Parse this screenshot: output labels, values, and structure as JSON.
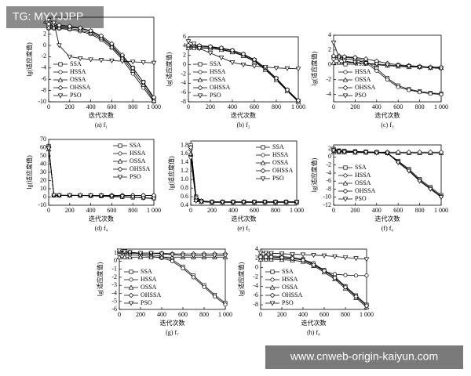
{
  "watermarks": {
    "top": "TG: MYYJJPP",
    "bottom": "www.cnweb-origin-kaiyun.com"
  },
  "chart_data": [
    {
      "type": "line",
      "title": "(a) f₁",
      "xlabel": "迭代次数",
      "ylabel": "lg(适应度值)",
      "legend": "lower left",
      "x": [
        0,
        50,
        100,
        200,
        300,
        400,
        500,
        600,
        700,
        800,
        900,
        1000
      ],
      "xlim": [
        0,
        1000
      ],
      "xticks": [
        0,
        200,
        400,
        600,
        800,
        {
          "value": 1000,
          "label": "1 000"
        }
      ],
      "ylim": [
        -10,
        5
      ],
      "yticks": [
        -10,
        -8,
        -6,
        -4,
        -2,
        0,
        2,
        4
      ],
      "series": [
        {
          "name": "SSA",
          "color": "#000",
          "marker": "square",
          "values": [
            3.5,
            3.5,
            3.4,
            3.2,
            3.0,
            2.5,
            1.5,
            0,
            -2,
            -4,
            -6.5,
            -9.5
          ]
        },
        {
          "name": "HSSA",
          "color": "#000",
          "marker": "circle",
          "values": [
            3,
            3,
            3,
            2.8,
            2.5,
            2,
            1,
            -0.5,
            -2.5,
            -5,
            -7.5,
            -10
          ]
        },
        {
          "name": "OSSA",
          "color": "#000",
          "marker": "triangle",
          "values": [
            3.2,
            3.2,
            3.1,
            3,
            2.7,
            2.2,
            1.3,
            -0.2,
            -2.2,
            -4.5,
            -7,
            -9.8
          ]
        },
        {
          "name": "OHSSA",
          "color": "#000",
          "marker": "diamond",
          "values": [
            3.8,
            3.7,
            3.6,
            3.4,
            3.1,
            2.6,
            1.7,
            0.3,
            -1.7,
            -4,
            -6.5,
            -9.2
          ]
        },
        {
          "name": "PSO",
          "color": "#000",
          "marker": "down",
          "values": [
            4.5,
            4,
            0,
            -2,
            -2.3,
            -2.5,
            -2.6,
            -2.7,
            -2.8,
            -2.9,
            -3,
            -3.1
          ]
        }
      ]
    },
    {
      "type": "line",
      "title": "(b) f₂",
      "xlabel": "迭代次数",
      "ylabel": "lg(适应度值)",
      "legend": "lower left",
      "x": [
        0,
        50,
        100,
        200,
        300,
        400,
        500,
        600,
        700,
        800,
        900,
        1000
      ],
      "xlim": [
        0,
        1000
      ],
      "xticks": [
        0,
        200,
        400,
        600,
        800,
        {
          "value": 1000,
          "label": "1 000"
        }
      ],
      "ylim": [
        -8,
        6
      ],
      "yticks": [
        -8,
        -6,
        -4,
        -2,
        0,
        2,
        4,
        6
      ],
      "series": [
        {
          "name": "SSA",
          "color": "#000",
          "marker": "square",
          "values": [
            4,
            4,
            4,
            3.8,
            3.5,
            3,
            2.2,
            1,
            -0.8,
            -3,
            -5.5,
            -7.8
          ]
        },
        {
          "name": "HSSA",
          "color": "#000",
          "marker": "circle",
          "values": [
            3.8,
            3.8,
            3.7,
            3.6,
            3.3,
            2.8,
            2,
            0.8,
            -1,
            -3.2,
            -5.6,
            -7.9
          ]
        },
        {
          "name": "OSSA",
          "color": "#000",
          "marker": "triangle",
          "values": [
            3.6,
            3.6,
            3.6,
            3.5,
            3.2,
            2.7,
            1.9,
            0.7,
            -1.1,
            -3.3,
            -5.7,
            -8
          ]
        },
        {
          "name": "OHSSA",
          "color": "#000",
          "marker": "diamond",
          "values": [
            4.2,
            4.2,
            4.1,
            3.9,
            3.6,
            3.1,
            2.3,
            1.1,
            -0.7,
            -2.9,
            -5.4,
            -7.7
          ]
        },
        {
          "name": "PSO",
          "color": "#000",
          "marker": "down",
          "values": [
            5,
            4.5,
            3.5,
            2.5,
            1.5,
            0.5,
            0,
            -0.3,
            -0.5,
            -0.7,
            -0.8,
            -0.9
          ]
        }
      ]
    },
    {
      "type": "line",
      "title": "(c) f₃",
      "xlabel": "迭代次数",
      "ylabel": "lg(适应度值)",
      "legend": "lower left",
      "x": [
        0,
        50,
        100,
        200,
        300,
        400,
        500,
        600,
        700,
        800,
        900,
        1000
      ],
      "xlim": [
        0,
        1000
      ],
      "xticks": [
        0,
        200,
        400,
        600,
        800,
        {
          "value": 1000,
          "label": "1 000"
        }
      ],
      "ylim": [
        -5,
        4
      ],
      "yticks": [
        -4,
        -2,
        0,
        2,
        4
      ],
      "series": [
        {
          "name": "SSA",
          "color": "#000",
          "marker": "square",
          "values": [
            1,
            1,
            1,
            0.9,
            0.5,
            -0.5,
            -1.8,
            -2.8,
            -3.3,
            -3.6,
            -3.8,
            -3.9
          ]
        },
        {
          "name": "HSSA",
          "color": "#000",
          "marker": "circle",
          "values": [
            0.8,
            0.8,
            0.8,
            0.7,
            0.3,
            -0.8,
            -2,
            -3,
            -3.4,
            -3.7,
            -3.9,
            -4
          ]
        },
        {
          "name": "OSSA",
          "color": "#000",
          "marker": "triangle",
          "values": [
            0.3,
            0.3,
            0.3,
            0.3,
            0.2,
            0,
            -0.1,
            -0.2,
            -0.3,
            -0.3,
            -0.4,
            -0.4
          ]
        },
        {
          "name": "OHSSA",
          "color": "#000",
          "marker": "diamond",
          "values": [
            1.2,
            1.2,
            1.1,
            1,
            0.8,
            0.5,
            0.2,
            0,
            -0.1,
            -0.2,
            -0.3,
            -0.3
          ]
        },
        {
          "name": "PSO",
          "color": "#000",
          "marker": "down",
          "values": [
            3,
            1,
            0.5,
            0.3,
            0.2,
            0.1,
            0,
            -0.1,
            -0.2,
            -0.3,
            -0.4,
            -0.5
          ]
        }
      ]
    },
    {
      "type": "line",
      "title": "(d) f₄",
      "xlabel": "迭代次数",
      "ylabel": "lg(适应度值)",
      "legend": "upper right",
      "x": [
        0,
        50,
        100,
        200,
        300,
        400,
        500,
        600,
        700,
        800,
        900,
        1000
      ],
      "xlim": [
        0,
        1000
      ],
      "xticks": [
        0,
        200,
        400,
        600,
        800,
        {
          "value": 1000,
          "label": "1 000"
        }
      ],
      "ylim": [
        -10,
        70
      ],
      "yticks": [
        -10,
        0,
        10,
        20,
        30,
        40,
        50,
        60,
        70
      ],
      "series": [
        {
          "name": "SSA",
          "color": "#000",
          "marker": "square",
          "values": [
            62,
            2,
            2,
            2,
            1.8,
            1.5,
            1,
            0.5,
            0,
            -0.5,
            -1,
            -1.5
          ]
        },
        {
          "name": "HSSA",
          "color": "#000",
          "marker": "circle",
          "values": [
            60,
            2,
            2,
            2,
            2,
            2,
            2,
            2,
            2,
            2,
            2,
            2
          ]
        },
        {
          "name": "OSSA",
          "color": "#000",
          "marker": "triangle",
          "values": [
            58,
            2,
            2,
            2,
            2,
            2,
            2,
            1.8,
            1.8,
            1.8,
            1.8,
            1.8
          ]
        },
        {
          "name": "OHSSA",
          "color": "#000",
          "marker": "diamond",
          "values": [
            61,
            2.2,
            2.2,
            2.2,
            2.1,
            2,
            2,
            2,
            2,
            2,
            2,
            2
          ]
        },
        {
          "name": "PSO",
          "color": "#000",
          "marker": "down",
          "values": [
            59,
            2,
            2,
            2,
            2,
            1.8,
            1.5,
            1,
            0.5,
            0,
            -1,
            -2
          ]
        }
      ]
    },
    {
      "type": "line",
      "title": "(e) f₅",
      "xlabel": "迭代次数",
      "ylabel": "lg(适应度值)",
      "legend": "upper right",
      "x": [
        0,
        50,
        100,
        200,
        300,
        400,
        500,
        600,
        700,
        800,
        900,
        1000
      ],
      "xlim": [
        0,
        1000
      ],
      "xticks": [
        0,
        200,
        400,
        600,
        800,
        {
          "value": 1000,
          "label": "1 000"
        }
      ],
      "ylim": [
        0.4,
        1.9
      ],
      "yticks": [
        0.4,
        0.6,
        0.8,
        {
          "value": 1,
          "label": "1.0"
        },
        1.2,
        1.4,
        1.6,
        1.8
      ],
      "series": [
        {
          "name": "SSA",
          "color": "#000",
          "marker": "square",
          "values": [
            1.8,
            0.6,
            0.5,
            0.48,
            0.48,
            0.48,
            0.48,
            0.48,
            0.48,
            0.48,
            0.48,
            0.48
          ]
        },
        {
          "name": "HSSA",
          "color": "#000",
          "marker": "circle",
          "values": [
            1.7,
            0.55,
            0.49,
            0.47,
            0.47,
            0.47,
            0.47,
            0.47,
            0.47,
            0.47,
            0.47,
            0.47
          ]
        },
        {
          "name": "OSSA",
          "color": "#000",
          "marker": "triangle",
          "values": [
            1.6,
            0.52,
            0.48,
            0.47,
            0.47,
            0.47,
            0.47,
            0.47,
            0.47,
            0.47,
            0.47,
            0.47
          ]
        },
        {
          "name": "OHSSA",
          "color": "#000",
          "marker": "diamond",
          "values": [
            1.75,
            0.58,
            0.5,
            0.48,
            0.48,
            0.48,
            0.48,
            0.48,
            0.48,
            0.48,
            0.48,
            0.48
          ]
        },
        {
          "name": "PSO",
          "color": "#000",
          "marker": "down",
          "values": [
            1.5,
            0.5,
            0.48,
            0.47,
            0.47,
            0.47,
            0.47,
            0.47,
            0.47,
            0.47,
            0.47,
            0.47
          ]
        }
      ]
    },
    {
      "type": "line",
      "title": "(f) f₆",
      "xlabel": "迭代次数",
      "ylabel": "lg(适应度值)",
      "legend": "lower left",
      "x": [
        0,
        50,
        100,
        200,
        300,
        400,
        500,
        600,
        700,
        800,
        900,
        1000
      ],
      "xlim": [
        0,
        1000
      ],
      "xticks": [
        0,
        200,
        400,
        600,
        800,
        {
          "value": 1000,
          "label": "1 000"
        }
      ],
      "ylim": [
        -12,
        3
      ],
      "yticks": [
        -12,
        -10,
        -8,
        -6,
        -4,
        -2,
        0,
        2
      ],
      "series": [
        {
          "name": "SSA",
          "color": "#000",
          "marker": "square",
          "values": [
            2,
            1.6,
            1.5,
            1.4,
            1.3,
            1.2,
            1,
            -1,
            -3,
            -5.5,
            -7.5,
            -9.5
          ]
        },
        {
          "name": "HSSA",
          "color": "#000",
          "marker": "circle",
          "values": [
            1.8,
            1.5,
            1.4,
            1.3,
            1.2,
            1.1,
            0.9,
            -1.2,
            -3.3,
            -5.8,
            -7.8,
            -9.8
          ]
        },
        {
          "name": "OSSA",
          "color": "#000",
          "marker": "triangle",
          "values": [
            1.2,
            1.2,
            1.2,
            1.1,
            1.1,
            1.1,
            1,
            1,
            1,
            1,
            1,
            1
          ]
        },
        {
          "name": "OHSSA",
          "color": "#000",
          "marker": "diamond",
          "values": [
            1.5,
            1.4,
            1.4,
            1.3,
            1.3,
            1.2,
            1.2,
            1.2,
            1.2,
            1.2,
            1.2,
            1.2
          ]
        },
        {
          "name": "PSO",
          "color": "#000",
          "marker": "down",
          "values": [
            1.6,
            1.3,
            1.2,
            1.1,
            1.1,
            1,
            1,
            -1.4,
            -3.5,
            -6,
            -8,
            -10
          ]
        }
      ]
    },
    {
      "type": "line",
      "title": "(g) f₇",
      "xlabel": "迭代次数",
      "ylabel": "lg(适应度值)",
      "legend": "lower left",
      "x": [
        0,
        50,
        100,
        200,
        300,
        400,
        500,
        600,
        700,
        800,
        900,
        1000
      ],
      "xlim": [
        0,
        1000
      ],
      "xticks": [
        0,
        200,
        400,
        600,
        800,
        {
          "value": 1000,
          "label": "1 000"
        }
      ],
      "ylim": [
        -6,
        1.5
      ],
      "yticks": [
        -6,
        -5,
        -4,
        -3,
        -2,
        -1,
        0,
        1
      ],
      "series": [
        {
          "name": "SSA",
          "color": "#000",
          "marker": "square",
          "values": [
            1,
            1,
            1,
            0.9,
            0.8,
            0.6,
            0.2,
            -0.7,
            -1.8,
            -3,
            -4.2,
            -5.2
          ]
        },
        {
          "name": "HSSA",
          "color": "#000",
          "marker": "circle",
          "values": [
            0.8,
            0.8,
            0.8,
            0.7,
            0.6,
            0.4,
            0,
            -0.9,
            -2,
            -3.2,
            -4.4,
            -5.4
          ]
        },
        {
          "name": "OSSA",
          "color": "#000",
          "marker": "triangle",
          "values": [
            0.5,
            0.5,
            0.5,
            0.5,
            0.5,
            0.5,
            0.5,
            0.5,
            0.5,
            0.5,
            0.5,
            0.5
          ]
        },
        {
          "name": "OHSSA",
          "color": "#000",
          "marker": "diamond",
          "values": [
            1.2,
            1.1,
            1.1,
            1,
            1,
            1,
            0.9,
            0.9,
            0.9,
            0.9,
            0.9,
            0.9
          ]
        },
        {
          "name": "PSO",
          "color": "#000",
          "marker": "down",
          "values": [
            1.3,
            1.2,
            1.1,
            1,
            1,
            0.9,
            0.8,
            0.7,
            0.7,
            0.7,
            0.7,
            0.7
          ]
        }
      ]
    },
    {
      "type": "line",
      "title": "(h) f₈",
      "xlabel": "迭代次数",
      "ylabel": "lg(适应度值)",
      "legend": "lower left",
      "x": [
        0,
        50,
        100,
        200,
        300,
        400,
        500,
        600,
        700,
        800,
        900,
        1000
      ],
      "xlim": [
        0,
        1000
      ],
      "xticks": [
        0,
        200,
        400,
        600,
        800,
        {
          "value": 1000,
          "label": "1 000"
        }
      ],
      "ylim": [
        -9,
        4
      ],
      "yticks": [
        -8,
        -6,
        -4,
        -2,
        0,
        2,
        4
      ],
      "series": [
        {
          "name": "SSA",
          "color": "#000",
          "marker": "square",
          "values": [
            2.5,
            2.5,
            2.5,
            2.4,
            2.2,
            1.8,
            0.8,
            -0.5,
            -2,
            -4,
            -6,
            -8
          ]
        },
        {
          "name": "HSSA",
          "color": "#000",
          "marker": "circle",
          "values": [
            2,
            2,
            2,
            2,
            1.9,
            1.7,
            1,
            -0.8,
            -1.4,
            -1.6,
            -1.7,
            -1.7
          ]
        },
        {
          "name": "OSSA",
          "color": "#000",
          "marker": "triangle",
          "values": [
            1.8,
            1.8,
            1.8,
            1.7,
            1.6,
            1.3,
            0.4,
            -1,
            -2.5,
            -4.5,
            -6.5,
            -8.5
          ]
        },
        {
          "name": "OHSSA",
          "color": "#000",
          "marker": "diamond",
          "values": [
            2.3,
            2.3,
            2.3,
            2.2,
            2,
            1.6,
            0.6,
            -0.7,
            -2.2,
            -4.2,
            -6.2,
            -8.2
          ]
        },
        {
          "name": "PSO",
          "color": "#000",
          "marker": "down",
          "values": [
            3.2,
            3.2,
            3.1,
            3,
            2.9,
            2.8,
            2.7,
            2.6,
            2.4,
            2.2,
            2,
            1.8
          ]
        }
      ]
    }
  ]
}
